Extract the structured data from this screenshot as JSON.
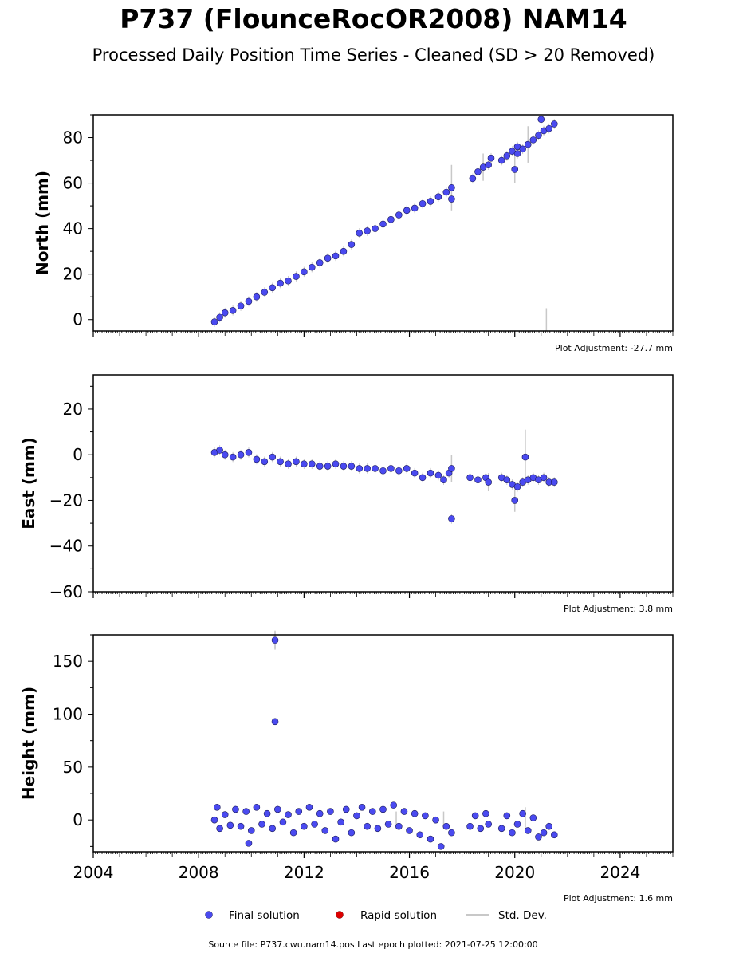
{
  "title": "P737 (FlounceRocOR2008) NAM14",
  "subtitle": "Processed Daily Position Time Series - Cleaned (SD > 20 Removed)",
  "colors": {
    "final": "#4a4af0",
    "final_edge": "#1a1a5a",
    "rapid": "#dd0000",
    "stddev": "#c8c8c8"
  },
  "legend": {
    "final": "Final solution",
    "rapid": "Rapid solution",
    "stddev": "Std. Dev."
  },
  "source": "Source file: P737.cwu.nam14.pos  Last epoch plotted: 2021-07-25 12:00:00",
  "chart_data": [
    {
      "type": "scatter",
      "ylabel": "North (mm)",
      "xlim": [
        2004,
        2026
      ],
      "ylim": [
        -5,
        90
      ],
      "yticks": [
        0,
        20,
        40,
        60,
        80
      ],
      "xticks": [],
      "adjustment": "Plot Adjustment: -27.7 mm",
      "series": [
        {
          "values": [
            [
              2008.6,
              -1
            ],
            [
              2008.8,
              1
            ],
            [
              2009.0,
              3
            ],
            [
              2009.3,
              4
            ],
            [
              2009.6,
              6
            ],
            [
              2009.9,
              8
            ],
            [
              2010.2,
              10
            ],
            [
              2010.5,
              12
            ],
            [
              2010.8,
              14
            ],
            [
              2011.1,
              16
            ],
            [
              2011.4,
              17
            ],
            [
              2011.7,
              19
            ],
            [
              2012.0,
              21
            ],
            [
              2012.3,
              23
            ],
            [
              2012.6,
              25
            ],
            [
              2012.9,
              27
            ],
            [
              2013.2,
              28
            ],
            [
              2013.5,
              30
            ],
            [
              2013.8,
              33
            ],
            [
              2014.1,
              38
            ],
            [
              2014.4,
              39
            ],
            [
              2014.7,
              40
            ],
            [
              2015.0,
              42
            ],
            [
              2015.3,
              44
            ],
            [
              2015.6,
              46
            ],
            [
              2015.9,
              48
            ],
            [
              2016.2,
              49
            ],
            [
              2016.5,
              51
            ],
            [
              2016.8,
              52
            ],
            [
              2017.1,
              54
            ],
            [
              2017.4,
              56
            ],
            [
              2017.6,
              58
            ],
            [
              2017.6,
              53
            ],
            [
              2018.4,
              62
            ],
            [
              2018.6,
              65
            ],
            [
              2018.8,
              67
            ],
            [
              2019.0,
              68
            ],
            [
              2019.1,
              71
            ],
            [
              2019.5,
              70
            ],
            [
              2019.7,
              72
            ],
            [
              2019.9,
              74
            ],
            [
              2020.1,
              76
            ],
            [
              2020.3,
              75
            ],
            [
              2020.5,
              77
            ],
            [
              2020.7,
              79
            ],
            [
              2020.9,
              81
            ],
            [
              2021.1,
              83
            ],
            [
              2021.3,
              84
            ],
            [
              2021.5,
              86
            ],
            [
              2020.0,
              66
            ],
            [
              2020.1,
              73
            ],
            [
              2021.0,
              88
            ]
          ],
          "stddev": [
            [
              2017.6,
              10
            ],
            [
              2020.0,
              6
            ],
            [
              2018.8,
              6
            ],
            [
              2020.5,
              8
            ],
            [
              2021.2,
              5
            ]
          ]
        }
      ]
    },
    {
      "type": "scatter",
      "ylabel": "East (mm)",
      "xlim": [
        2004,
        2026
      ],
      "ylim": [
        -60,
        35
      ],
      "yticks": [
        -60,
        -40,
        -20,
        0,
        20
      ],
      "xticks": [],
      "adjustment": "Plot Adjustment: 3.8 mm",
      "series": [
        {
          "values": [
            [
              2008.6,
              1
            ],
            [
              2008.8,
              2
            ],
            [
              2009.0,
              0
            ],
            [
              2009.3,
              -1
            ],
            [
              2009.6,
              0
            ],
            [
              2009.9,
              1
            ],
            [
              2010.2,
              -2
            ],
            [
              2010.5,
              -3
            ],
            [
              2010.8,
              -1
            ],
            [
              2011.1,
              -3
            ],
            [
              2011.4,
              -4
            ],
            [
              2011.7,
              -3
            ],
            [
              2012.0,
              -4
            ],
            [
              2012.3,
              -4
            ],
            [
              2012.6,
              -5
            ],
            [
              2012.9,
              -5
            ],
            [
              2013.2,
              -4
            ],
            [
              2013.5,
              -5
            ],
            [
              2013.8,
              -5
            ],
            [
              2014.1,
              -6
            ],
            [
              2014.4,
              -6
            ],
            [
              2014.7,
              -6
            ],
            [
              2015.0,
              -7
            ],
            [
              2015.3,
              -6
            ],
            [
              2015.6,
              -7
            ],
            [
              2015.9,
              -6
            ],
            [
              2016.2,
              -8
            ],
            [
              2016.5,
              -10
            ],
            [
              2016.8,
              -8
            ],
            [
              2017.1,
              -9
            ],
            [
              2017.3,
              -11
            ],
            [
              2017.5,
              -8
            ],
            [
              2017.6,
              -6
            ],
            [
              2017.6,
              -28
            ],
            [
              2018.3,
              -10
            ],
            [
              2018.6,
              -11
            ],
            [
              2018.9,
              -10
            ],
            [
              2019.0,
              -12
            ],
            [
              2019.5,
              -10
            ],
            [
              2019.7,
              -11
            ],
            [
              2019.9,
              -13
            ],
            [
              2020.1,
              -14
            ],
            [
              2020.3,
              -12
            ],
            [
              2020.5,
              -11
            ],
            [
              2020.7,
              -10
            ],
            [
              2020.9,
              -11
            ],
            [
              2021.1,
              -10
            ],
            [
              2021.3,
              -12
            ],
            [
              2021.5,
              -12
            ],
            [
              2020.0,
              -20
            ],
            [
              2020.4,
              -1
            ]
          ],
          "stddev": [
            [
              2017.6,
              6
            ],
            [
              2020.4,
              12
            ],
            [
              2020.0,
              5
            ],
            [
              2019.0,
              4
            ]
          ]
        }
      ]
    },
    {
      "type": "scatter",
      "ylabel": "Height (mm)",
      "xlim": [
        2004,
        2026
      ],
      "ylim": [
        -30,
        175
      ],
      "yticks": [
        0,
        50,
        100,
        150
      ],
      "xticks": [
        2004,
        2008,
        2012,
        2016,
        2020,
        2024
      ],
      "adjustment": "Plot Adjustment: 1.6 mm",
      "series": [
        {
          "values": [
            [
              2008.6,
              0
            ],
            [
              2008.7,
              12
            ],
            [
              2008.8,
              -8
            ],
            [
              2009.0,
              5
            ],
            [
              2009.2,
              -5
            ],
            [
              2009.4,
              10
            ],
            [
              2009.6,
              -6
            ],
            [
              2009.8,
              8
            ],
            [
              2010.0,
              -10
            ],
            [
              2010.2,
              12
            ],
            [
              2010.4,
              -4
            ],
            [
              2010.6,
              6
            ],
            [
              2010.8,
              -8
            ],
            [
              2011.0,
              10
            ],
            [
              2011.2,
              -2
            ],
            [
              2011.4,
              5
            ],
            [
              2011.6,
              -12
            ],
            [
              2011.8,
              8
            ],
            [
              2012.0,
              -6
            ],
            [
              2012.2,
              12
            ],
            [
              2012.4,
              -4
            ],
            [
              2012.6,
              6
            ],
            [
              2012.8,
              -10
            ],
            [
              2013.0,
              8
            ],
            [
              2013.2,
              -18
            ],
            [
              2013.4,
              -2
            ],
            [
              2013.6,
              10
            ],
            [
              2013.8,
              -12
            ],
            [
              2014.0,
              4
            ],
            [
              2014.2,
              12
            ],
            [
              2014.4,
              -6
            ],
            [
              2014.6,
              8
            ],
            [
              2014.8,
              -8
            ],
            [
              2015.0,
              10
            ],
            [
              2015.2,
              -4
            ],
            [
              2015.4,
              14
            ],
            [
              2015.6,
              -6
            ],
            [
              2015.8,
              8
            ],
            [
              2016.0,
              -10
            ],
            [
              2016.2,
              6
            ],
            [
              2016.4,
              -14
            ],
            [
              2016.6,
              4
            ],
            [
              2016.8,
              -18
            ],
            [
              2017.0,
              0
            ],
            [
              2017.2,
              -25
            ],
            [
              2017.4,
              -6
            ],
            [
              2017.6,
              -12
            ],
            [
              2018.3,
              -6
            ],
            [
              2018.5,
              4
            ],
            [
              2018.7,
              -8
            ],
            [
              2018.9,
              6
            ],
            [
              2019.0,
              -4
            ],
            [
              2019.5,
              -8
            ],
            [
              2019.7,
              4
            ],
            [
              2019.9,
              -12
            ],
            [
              2020.1,
              -4
            ],
            [
              2020.3,
              6
            ],
            [
              2020.5,
              -10
            ],
            [
              2020.7,
              2
            ],
            [
              2020.9,
              -16
            ],
            [
              2021.1,
              -12
            ],
            [
              2021.3,
              -6
            ],
            [
              2021.5,
              -14
            ],
            [
              2009.9,
              -22
            ],
            [
              2010.9,
              170
            ],
            [
              2010.9,
              93
            ]
          ],
          "stddev": [
            [
              2010.9,
              8
            ],
            [
              2010.9,
              9
            ],
            [
              2015.5,
              8
            ],
            [
              2017.3,
              8
            ],
            [
              2020.4,
              12
            ]
          ]
        }
      ]
    }
  ]
}
